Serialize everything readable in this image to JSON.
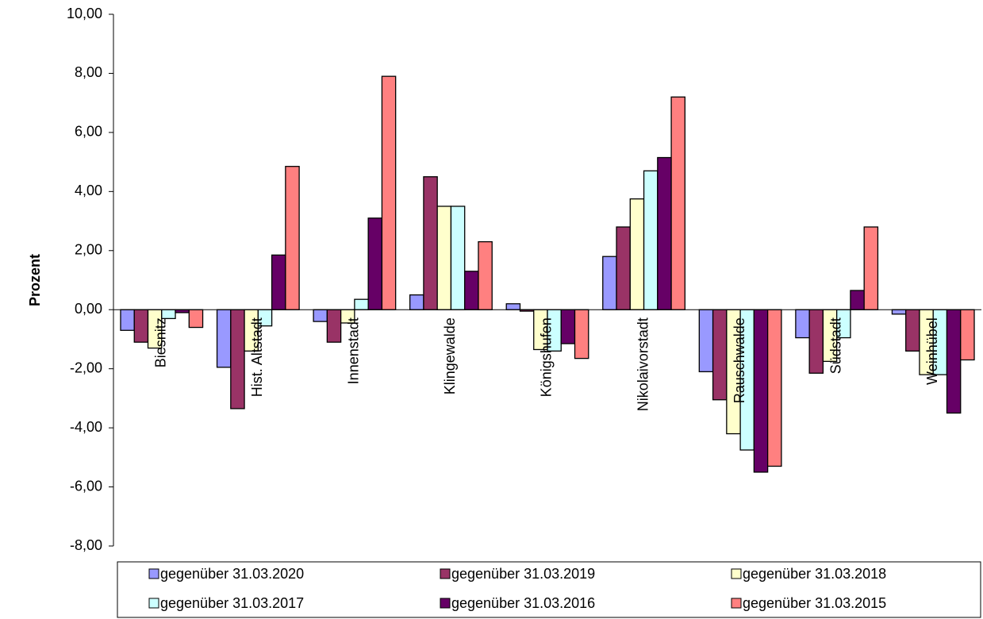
{
  "chart_data": {
    "type": "bar",
    "y_label": "Prozent",
    "categories": [
      "Biesnitz",
      "Hist. Altstadt",
      "Innenstadt",
      "Klingewalde",
      "Königshufen",
      "Nikolaivorstadt",
      "Rauschwalde",
      "Südstadt",
      "Weinhübel"
    ],
    "series": [
      {
        "name": "gegenüber 31.03.2020",
        "color": "#9999ff",
        "values": [
          -0.7,
          -1.95,
          -0.4,
          0.5,
          0.2,
          1.8,
          -2.1,
          -0.95,
          -0.15
        ]
      },
      {
        "name": "gegenüber 31.03.2019",
        "color": "#993366",
        "values": [
          -1.1,
          -3.35,
          -1.1,
          4.5,
          -0.05,
          2.8,
          -3.05,
          -2.15,
          -1.4
        ]
      },
      {
        "name": "gegenüber 31.03.2018",
        "color": "#ffffcc",
        "values": [
          -1.3,
          -1.4,
          -0.45,
          3.5,
          -1.35,
          3.75,
          -4.2,
          -1.75,
          -2.2
        ]
      },
      {
        "name": "gegenüber 31.03.2017",
        "color": "#ccffff",
        "values": [
          -0.3,
          -0.55,
          0.35,
          3.5,
          -1.4,
          4.7,
          -4.75,
          -0.95,
          -2.2
        ]
      },
      {
        "name": "gegenüber 31.03.2016",
        "color": "#660066",
        "values": [
          -0.1,
          1.85,
          3.1,
          1.3,
          -1.15,
          5.15,
          -5.5,
          0.65,
          -3.5
        ]
      },
      {
        "name": "gegenüber 31.03.2015",
        "color": "#ff8080",
        "values": [
          -0.6,
          4.85,
          7.9,
          2.3,
          -1.65,
          7.2,
          -5.3,
          2.8,
          -1.7
        ]
      }
    ],
    "ylim": [
      -8,
      10
    ],
    "yticks": [
      {
        "value": -8,
        "label": "-8,00"
      },
      {
        "value": -6,
        "label": "-6,00"
      },
      {
        "value": -4,
        "label": "-4,00"
      },
      {
        "value": -2,
        "label": "-2,00"
      },
      {
        "value": 0,
        "label": "0,00"
      },
      {
        "value": 2,
        "label": "2,00"
      },
      {
        "value": 4,
        "label": "4,00"
      },
      {
        "value": 6,
        "label": "6,00"
      },
      {
        "value": 8,
        "label": "8,00"
      },
      {
        "value": 10,
        "label": "10,00"
      }
    ]
  }
}
